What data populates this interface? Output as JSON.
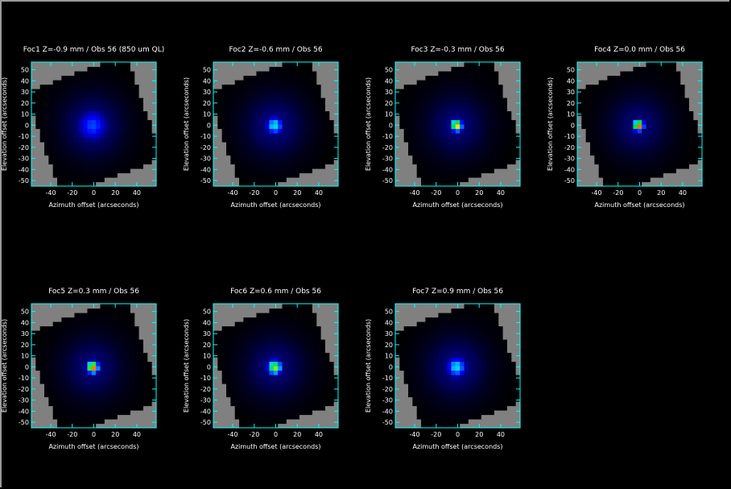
{
  "colors": {
    "background": "#000000",
    "axis": "#00ffff",
    "text": "#ffffff",
    "mask": "#808080"
  },
  "chart_data": {
    "type": "heatmap",
    "colormap": "black-blue-cyan-green-yellow-red",
    "xlabel": "Azimuth offset (arcseconds)",
    "ylabel": "Elevation offset (arcseconds)",
    "xlim": [
      -58,
      58
    ],
    "ylim": [
      -55,
      57
    ],
    "xticks": [
      -40,
      -20,
      0,
      20,
      40
    ],
    "yticks": [
      -50,
      -40,
      -30,
      -20,
      -10,
      0,
      10,
      20,
      30,
      40,
      50
    ],
    "panels": [
      {
        "title": "Foc1 Z=-0.9 mm / Obs 56 (850 um QL)",
        "focus_z_mm": -0.9,
        "peak_level": 0.42,
        "fwhm_arcsec": 26
      },
      {
        "title": "Foc2 Z=-0.6 mm / Obs 56",
        "focus_z_mm": -0.6,
        "peak_level": 0.6,
        "fwhm_arcsec": 14
      },
      {
        "title": "Foc3 Z=-0.3 mm / Obs 56",
        "focus_z_mm": -0.3,
        "peak_level": 0.92,
        "fwhm_arcsec": 10
      },
      {
        "title": "Foc4 Z=0.0 mm / Obs 56",
        "focus_z_mm": 0.0,
        "peak_level": 1.0,
        "fwhm_arcsec": 9
      },
      {
        "title": "Foc5 Z=0.3 mm / Obs 56",
        "focus_z_mm": 0.3,
        "peak_level": 0.98,
        "fwhm_arcsec": 10
      },
      {
        "title": "Foc6 Z=0.6 mm / Obs 56",
        "focus_z_mm": 0.6,
        "peak_level": 0.82,
        "fwhm_arcsec": 12
      },
      {
        "title": "Foc7 Z=0.9 mm / Obs 56",
        "focus_z_mm": 0.9,
        "peak_level": 0.58,
        "fwhm_arcsec": 16
      }
    ]
  }
}
